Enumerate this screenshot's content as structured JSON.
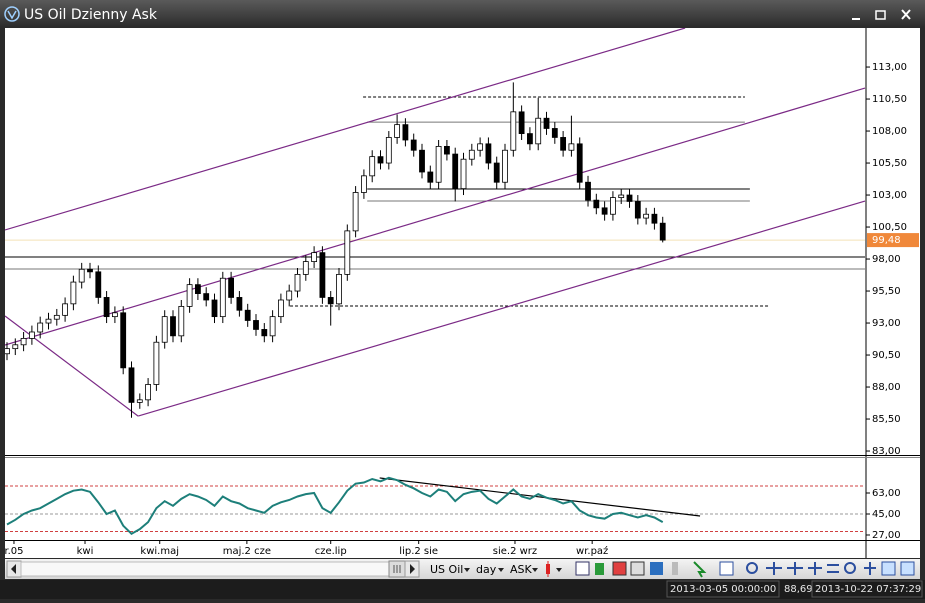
{
  "window": {
    "title": "US Oil Dzienny Ask"
  },
  "chart_data": [
    {
      "type": "candlestick",
      "xlim": [
        -0.24,
        103.37
      ],
      "xticks": [
        {
          "value": 0.84,
          "label": "r.05"
        },
        {
          "value": 9.4,
          "label": "kwi"
        },
        {
          "value": 18.4,
          "label": "kwi.maj"
        },
        {
          "value": 28.9,
          "label": "maj.2 cze"
        },
        {
          "value": 39,
          "label": "cze.lip"
        },
        {
          "value": 49.6,
          "label": "lip.2 sie"
        },
        {
          "value": 61.2,
          "label": "sie.2 wrz"
        },
        {
          "value": 70.5,
          "label": "wr.paź"
        }
      ],
      "ylim": [
        82.69,
        116.05
      ],
      "yticks": [
        {
          "value": 113,
          "label": "113,00"
        },
        {
          "value": 110.5,
          "label": "110,50"
        },
        {
          "value": 108,
          "label": "108,00"
        },
        {
          "value": 105.5,
          "label": "105,50"
        },
        {
          "value": 103,
          "label": "103,00"
        },
        {
          "value": 100.5,
          "label": "100,50"
        },
        {
          "value": 98,
          "label": "98,00"
        },
        {
          "value": 95.5,
          "label": "95,50"
        },
        {
          "value": 93,
          "label": "93,00"
        },
        {
          "value": 90.5,
          "label": "90,50"
        },
        {
          "value": 88,
          "label": "88,00"
        },
        {
          "value": 85.5,
          "label": "85,50"
        },
        {
          "value": 83,
          "label": "83,00"
        }
      ],
      "open": [
        90.6,
        91.0,
        91.3,
        91.8,
        92.3,
        93.0,
        93.3,
        93.6,
        94.5,
        96.2,
        97.2,
        97.0,
        95.0,
        93.5,
        93.8,
        89.5,
        86.8,
        87.0,
        88.2,
        91.5,
        93.5,
        92.0,
        94.3,
        96.0,
        95.3,
        94.8,
        93.5,
        96.5,
        95.0,
        94.0,
        93.2,
        92.5,
        92.0,
        93.5,
        94.8,
        95.5,
        96.8,
        97.8,
        98.5,
        95.0,
        94.5,
        96.8,
        100.2,
        103.2,
        104.5,
        106.0,
        105.5,
        107.5,
        108.5,
        107.3,
        106.5,
        104.8,
        104.0,
        106.8,
        106.2,
        103.5,
        105.8,
        106.5,
        107.0,
        105.5,
        104.0,
        106.5,
        109.5,
        107.8,
        107.0,
        109.0,
        108.2,
        107.5,
        106.5,
        107.0,
        104.0,
        102.6,
        102.0,
        101.5,
        102.8,
        103.0,
        102.5,
        101.2,
        101.5,
        100.8
      ],
      "high": [
        91.5,
        91.8,
        92.3,
        92.8,
        93.5,
        93.8,
        94.1,
        95.0,
        96.7,
        97.7,
        97.7,
        97.5,
        95.5,
        94.3,
        94.3,
        90.0,
        87.5,
        88.7,
        92.0,
        94.0,
        94.0,
        94.8,
        96.5,
        96.5,
        95.8,
        95.3,
        97.0,
        97.0,
        95.5,
        94.5,
        93.7,
        93.0,
        94.0,
        95.3,
        96.0,
        97.3,
        98.3,
        99.0,
        99.0,
        95.5,
        97.3,
        100.7,
        103.7,
        105.0,
        106.5,
        106.5,
        108.0,
        109.3,
        109.0,
        107.8,
        107.0,
        105.3,
        107.3,
        107.3,
        106.7,
        106.3,
        107.0,
        107.5,
        107.5,
        106.0,
        107.0,
        111.8,
        110.0,
        108.3,
        110.6,
        109.5,
        108.7,
        108.0,
        109.2,
        107.5,
        104.5,
        103.1,
        102.5,
        103.3,
        103.5,
        103.5,
        103.0,
        102.0,
        102.0,
        101.3
      ],
      "low": [
        90.1,
        90.5,
        90.8,
        91.3,
        91.8,
        92.5,
        92.8,
        93.1,
        94.0,
        95.7,
        96.5,
        94.5,
        93.0,
        93.0,
        89.0,
        85.6,
        86.3,
        86.5,
        87.7,
        91.0,
        91.5,
        91.5,
        93.8,
        94.8,
        94.3,
        93.0,
        93.0,
        94.5,
        93.5,
        92.7,
        92.0,
        91.5,
        91.5,
        93.0,
        94.3,
        95.0,
        96.3,
        97.3,
        94.5,
        92.8,
        94.0,
        96.3,
        99.7,
        102.7,
        104.0,
        105.0,
        105.0,
        107.0,
        106.8,
        106.0,
        104.3,
        103.5,
        103.5,
        105.7,
        102.5,
        103.0,
        105.3,
        106.0,
        105.0,
        103.5,
        103.5,
        106.0,
        107.3,
        106.5,
        106.5,
        107.7,
        107.0,
        106.0,
        106.0,
        103.5,
        102.1,
        101.5,
        101.0,
        101.0,
        102.3,
        102.0,
        100.7,
        100.7,
        100.3,
        99.3
      ],
      "close": [
        91.0,
        91.3,
        91.8,
        92.3,
        93.0,
        93.3,
        93.6,
        94.5,
        96.2,
        97.2,
        97.0,
        95.0,
        93.5,
        93.8,
        89.5,
        86.8,
        87.0,
        88.2,
        91.5,
        93.5,
        92.0,
        94.3,
        96.0,
        95.3,
        94.8,
        93.5,
        96.5,
        95.0,
        94.0,
        93.2,
        92.5,
        92.0,
        93.5,
        94.8,
        95.5,
        96.8,
        97.8,
        98.5,
        95.0,
        94.5,
        96.8,
        100.2,
        103.2,
        104.5,
        106.0,
        105.5,
        107.5,
        108.5,
        107.3,
        106.5,
        104.8,
        104.0,
        106.8,
        106.2,
        103.5,
        105.8,
        106.5,
        107.0,
        105.5,
        104.0,
        106.5,
        109.5,
        107.8,
        107.0,
        109.0,
        108.2,
        107.5,
        106.5,
        107.0,
        104.0,
        102.6,
        102.0,
        101.5,
        102.8,
        103.0,
        102.5,
        101.2,
        101.5,
        100.8,
        99.48
      ],
      "up_color": "#ffffff",
      "down_color": "#000000",
      "edge_color": "#000000",
      "last_price": {
        "value": 99.48,
        "label": "99,48",
        "color": "#f0883a"
      },
      "levels": [
        {
          "y": 98.16,
          "x": [
            -0.24,
            103.37
          ],
          "color": "#000000",
          "dashed": false
        },
        {
          "y": 97.22,
          "x": [
            -0.24,
            103.37
          ],
          "color": "#777777",
          "dashed": false
        },
        {
          "y": 94.33,
          "x": [
            34.1,
            91.9
          ],
          "color": "#000000",
          "dashed": true
        },
        {
          "y": 103.47,
          "x": [
            43.4,
            89.5
          ],
          "color": "#000000",
          "dashed": false
        },
        {
          "y": 102.53,
          "x": [
            43.4,
            89.5
          ],
          "color": "#777777",
          "dashed": false
        },
        {
          "y": 108.7,
          "x": [
            43.4,
            88.9
          ],
          "color": "#777777",
          "dashed": false
        },
        {
          "y": 110.66,
          "x": [
            42.9,
            88.9
          ],
          "color": "#000000",
          "dashed": true
        }
      ],
      "trendlines": [
        {
          "x": [
            -0.24,
            81.7
          ],
          "y": [
            100.27,
            116.05
          ],
          "color": "#7b2a86"
        },
        {
          "x": [
            -0.24,
            103.37
          ],
          "y": [
            91.28,
            111.36
          ],
          "color": "#7b2a86"
        },
        {
          "x": [
            15.8,
            103.37
          ],
          "y": [
            85.73,
            102.53
          ],
          "color": "#7b2a86"
        },
        {
          "x": [
            -0.24,
            15.8
          ],
          "y": [
            93.55,
            85.73
          ],
          "color": "#7b2a86"
        }
      ]
    },
    {
      "type": "line",
      "xlim": [
        -0.24,
        103.37
      ],
      "ylim": [
        22.7,
        93
      ],
      "yticks": [
        {
          "value": 63,
          "label": "63,00"
        },
        {
          "value": 45,
          "label": "45,00"
        },
        {
          "value": 27,
          "label": "27,00"
        }
      ],
      "series": [
        {
          "color": "#1d7f7a",
          "values": [
            36,
            40,
            45,
            48,
            50,
            54,
            58,
            62,
            65,
            66,
            64,
            55,
            45,
            48,
            35,
            28,
            32,
            38,
            50,
            56,
            52,
            58,
            62,
            60,
            57,
            52,
            60,
            56,
            54,
            50,
            48,
            46,
            52,
            55,
            57,
            60,
            62,
            63,
            50,
            46,
            55,
            65,
            71,
            72,
            75,
            73,
            76,
            74,
            70,
            67,
            63,
            60,
            66,
            64,
            56,
            62,
            64,
            65,
            58,
            54,
            60,
            66,
            60,
            58,
            62,
            59,
            57,
            54,
            56,
            48,
            44,
            42,
            41,
            45,
            46,
            44,
            42,
            44,
            42,
            38
          ]
        }
      ],
      "levels": [
        {
          "y": 69,
          "x": [
            -0.24,
            103.37
          ],
          "color": "#d04040",
          "dashed": true
        },
        {
          "y": 45,
          "x": [
            -0.24,
            103.37
          ],
          "color": "#999999",
          "dashed": true
        },
        {
          "y": 30,
          "x": [
            -0.24,
            103.37
          ],
          "color": "#d04040",
          "dashed": true
        }
      ],
      "trendlines": [
        {
          "x": [
            44.9,
            83.5
          ],
          "y": [
            75.9,
            43.3
          ],
          "color": "#000000"
        }
      ]
    }
  ],
  "toolbar": {
    "instrument": "US Oil",
    "period": "day",
    "side": "ASK"
  },
  "status_bar": {
    "start": "2013-03-05 00:00:00",
    "cursor_price": "88,69",
    "time": "2013-10-22 07:37:29"
  }
}
